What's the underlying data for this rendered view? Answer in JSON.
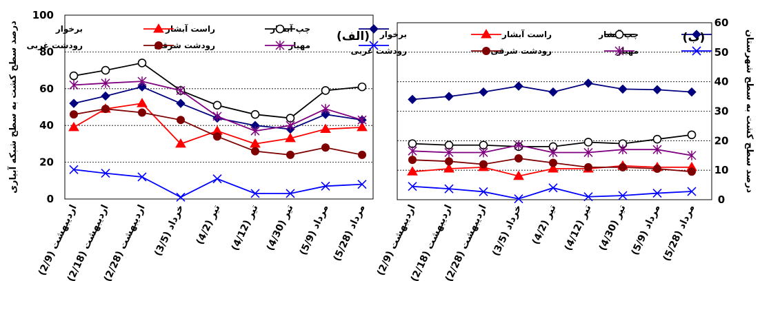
{
  "chart_data": [
    {
      "type": "line",
      "panel_label": "(الف)",
      "ylabel": "درصد سطح کشت به سطح شبکه آبیاری",
      "ylim": [
        0,
        100
      ],
      "yticks": [
        0,
        20,
        40,
        60,
        80,
        100
      ],
      "grid": true,
      "legend": "top, inside plot",
      "categories": [
        "اردیبهشت (2/9)",
        "اردیبهشت (2/18)",
        "اردیبهشت (2/28)",
        "خرداد (3/5)",
        "تیر (4/2)",
        "تیر (4/12)",
        "تیر (4/30)",
        "مرداد (5/9)",
        "مرداد (5/28)"
      ],
      "series": [
        {
          "name": "چپ آبشار",
          "color": "#00007f",
          "marker": "diamond",
          "values": [
            52,
            56,
            61,
            52,
            44,
            40,
            38,
            46,
            43
          ]
        },
        {
          "name": "راست آبشار",
          "color": "#000000",
          "marker": "circle",
          "values": [
            67,
            70,
            74,
            59,
            51,
            46,
            44,
            59,
            61
          ]
        },
        {
          "name": "برخوار",
          "color": "#ff0000",
          "marker": "triangle",
          "values": [
            39,
            49,
            52,
            30,
            37,
            30,
            33,
            38,
            39
          ]
        },
        {
          "name": "مهیار",
          "color": "#0000ff",
          "marker": "x",
          "values": [
            16,
            14,
            12,
            1,
            11,
            3,
            3,
            7,
            8
          ]
        },
        {
          "name": "رودشت شرقی",
          "color": "#7f007f",
          "marker": "star",
          "values": [
            62,
            63,
            64,
            59,
            45,
            37,
            40,
            49,
            43
          ]
        },
        {
          "name": "رودشت غربی",
          "color": "#7f0000",
          "marker": "dot",
          "values": [
            46,
            49,
            47,
            43,
            34,
            26,
            24,
            28,
            24
          ]
        }
      ]
    },
    {
      "type": "line",
      "panel_label": "(ب)",
      "ylabel": "درصد سطح کشت به سطح شهرستان",
      "ylim": [
        0,
        60
      ],
      "yticks": [
        0,
        10,
        20,
        30,
        40,
        50,
        60
      ],
      "grid": true,
      "legend": "top, inside plot",
      "categories": [
        "اردیبهشت (2/9)",
        "اردیبهشت (2/18)",
        "اردیبهشت (2/28)",
        "خرداد (3/5)",
        "تیر (4/2)",
        "تیر (4/12)",
        "تیر (4/30)",
        "مرداد (5/9)",
        "مرداد (5/28)"
      ],
      "series": [
        {
          "name": "چپ آبشار",
          "color": "#00007f",
          "marker": "diamond",
          "values": [
            34,
            35,
            36.5,
            38.5,
            36.5,
            39.5,
            37.5,
            37.3,
            36.5
          ]
        },
        {
          "name": "راست آبشار",
          "color": "#000000",
          "marker": "circle",
          "values": [
            19,
            18.5,
            18.5,
            18,
            18,
            19.5,
            19,
            20.5,
            22
          ]
        },
        {
          "name": "برخوار",
          "color": "#ff0000",
          "marker": "triangle",
          "values": [
            9.5,
            10.5,
            11,
            8,
            10.5,
            10.5,
            11.5,
            11,
            11
          ]
        },
        {
          "name": "مهیار",
          "color": "#0000ff",
          "marker": "x",
          "values": [
            4.5,
            3.7,
            2.7,
            0.3,
            4,
            1,
            1.4,
            2.2,
            2.8
          ]
        },
        {
          "name": "رودشت شرقی",
          "color": "#7f007f",
          "marker": "star",
          "values": [
            16.5,
            16,
            16,
            18.5,
            16,
            16,
            17,
            17,
            15
          ]
        },
        {
          "name": "رودشت غربی",
          "color": "#7f0000",
          "marker": "dot",
          "values": [
            13.5,
            13,
            12,
            14,
            12.5,
            11,
            11,
            10.5,
            9.5
          ]
        }
      ]
    }
  ]
}
